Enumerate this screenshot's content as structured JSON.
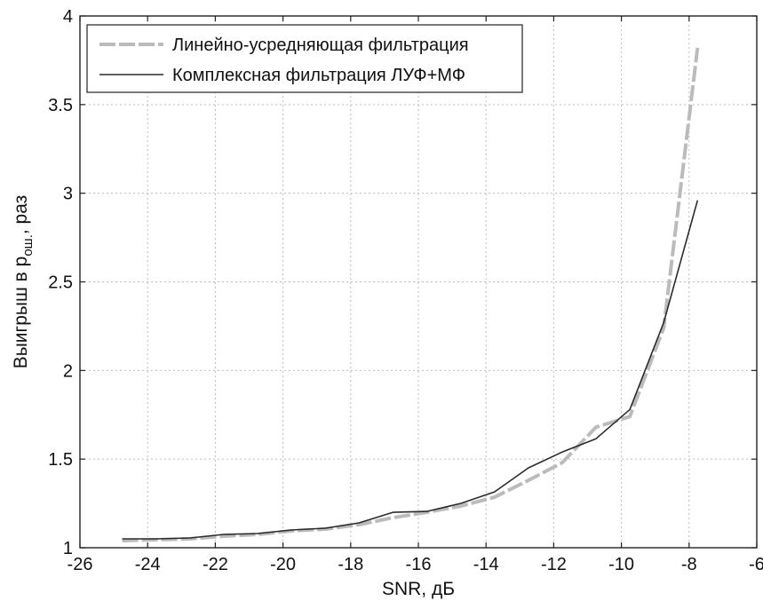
{
  "chart_data": {
    "type": "line",
    "xlabel": "SNR, дБ",
    "ylabel": {
      "text": "Выигрыш в p",
      "subscript": "ош.",
      "suffix": ", раз"
    },
    "xlim": [
      -26,
      -6
    ],
    "ylim": [
      1,
      4
    ],
    "xticks": [
      -26,
      -24,
      -22,
      -20,
      -18,
      -16,
      -14,
      -12,
      -10,
      -8,
      -6
    ],
    "yticks": [
      1,
      1.5,
      2,
      2.5,
      3,
      3.5,
      4
    ],
    "ytick_labels": [
      "1",
      "1.5",
      "2",
      "2.5",
      "3",
      "3.5",
      "4"
    ],
    "grid": true,
    "legend": {
      "position": "top-left"
    },
    "series": [
      {
        "name": "Линейно-усредняющая фильтрация",
        "color": "#bbbbbb",
        "style": "dashed-thick",
        "x": [
          -24.75,
          -23.75,
          -22.75,
          -21.75,
          -20.75,
          -19.75,
          -18.75,
          -17.75,
          -16.75,
          -15.75,
          -14.75,
          -13.75,
          -12.75,
          -11.75,
          -10.75,
          -9.75,
          -8.75,
          -7.75
        ],
        "values": [
          1.04,
          1.045,
          1.05,
          1.065,
          1.075,
          1.095,
          1.105,
          1.13,
          1.17,
          1.2,
          1.235,
          1.285,
          1.38,
          1.48,
          1.68,
          1.74,
          2.24,
          3.82
        ]
      },
      {
        "name": "Комплексная фильтрация ЛУФ+МФ",
        "color": "#2b2b2b",
        "style": "solid-thin",
        "x": [
          -24.75,
          -23.75,
          -22.75,
          -21.75,
          -20.75,
          -19.75,
          -18.75,
          -17.75,
          -16.75,
          -15.75,
          -14.75,
          -13.75,
          -12.75,
          -11.75,
          -10.75,
          -9.75,
          -8.75,
          -7.75
        ],
        "values": [
          1.05,
          1.05,
          1.055,
          1.075,
          1.08,
          1.1,
          1.11,
          1.14,
          1.2,
          1.205,
          1.25,
          1.315,
          1.45,
          1.54,
          1.615,
          1.78,
          2.27,
          2.96
        ]
      }
    ]
  }
}
